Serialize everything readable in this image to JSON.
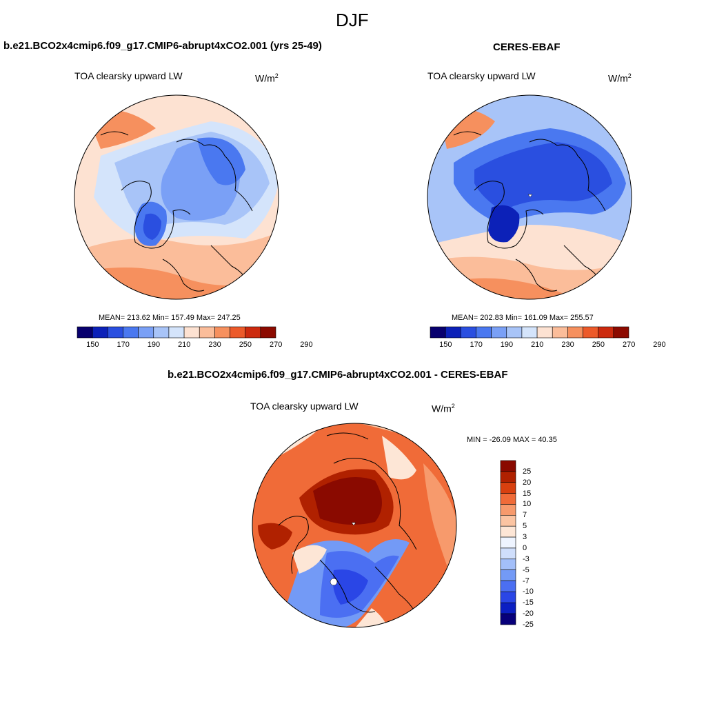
{
  "figure": {
    "season": "DJF"
  },
  "colors": {
    "abs_scale": [
      "#08006e",
      "#0c21b8",
      "#2a4fe0",
      "#4a78f0",
      "#7aa0f6",
      "#a8c4f8",
      "#d4e4fb",
      "#fde2d2",
      "#fbbd9a",
      "#f6905e",
      "#ec5a2a",
      "#cc2a0e",
      "#8c0a00"
    ],
    "diff_scale": [
      "#07007a",
      "#0b1fc2",
      "#2a46e6",
      "#4b6ff2",
      "#739af6",
      "#a3bff9",
      "#cfdefb",
      "#eef4ff",
      "#fde6d6",
      "#fbc4a2",
      "#f79a6c",
      "#f06b38",
      "#d8400f",
      "#b02100",
      "#8a0a00"
    ]
  },
  "panels": [
    {
      "case": "b.e21.BCO2x4cmip6.f09_g17.CMIP6-abrupt4xCO2.001 (yrs 25-49)",
      "variable": "TOA clearsky upward LW",
      "units": "W/m",
      "units_sup": "2",
      "stats": "MEAN= 213.62  Min= 157.49  Max= 247.25",
      "colorbar": {
        "ticks": [
          "150",
          "170",
          "190",
          "210",
          "230",
          "250",
          "270",
          "290"
        ]
      }
    },
    {
      "case": "CERES-EBAF",
      "variable": "TOA clearsky upward LW",
      "units": "W/m",
      "units_sup": "2",
      "stats": "MEAN= 202.83  Min= 161.09  Max= 255.57",
      "colorbar": {
        "ticks": [
          "150",
          "170",
          "190",
          "210",
          "230",
          "250",
          "270",
          "290"
        ]
      }
    },
    {
      "case": "b.e21.BCO2x4cmip6.f09_g17.CMIP6-abrupt4xCO2.001 - CERES-EBAF",
      "variable": "TOA clearsky upward LW",
      "units": "W/m",
      "units_sup": "2",
      "stats": "MIN = -26.09 MAX =  40.35",
      "colorbar": {
        "ticks": [
          "25",
          "20",
          "15",
          "10",
          "7",
          "5",
          "3",
          "0",
          "-3",
          "-5",
          "-7",
          "-10",
          "-15",
          "-20",
          "-25"
        ]
      }
    }
  ]
}
